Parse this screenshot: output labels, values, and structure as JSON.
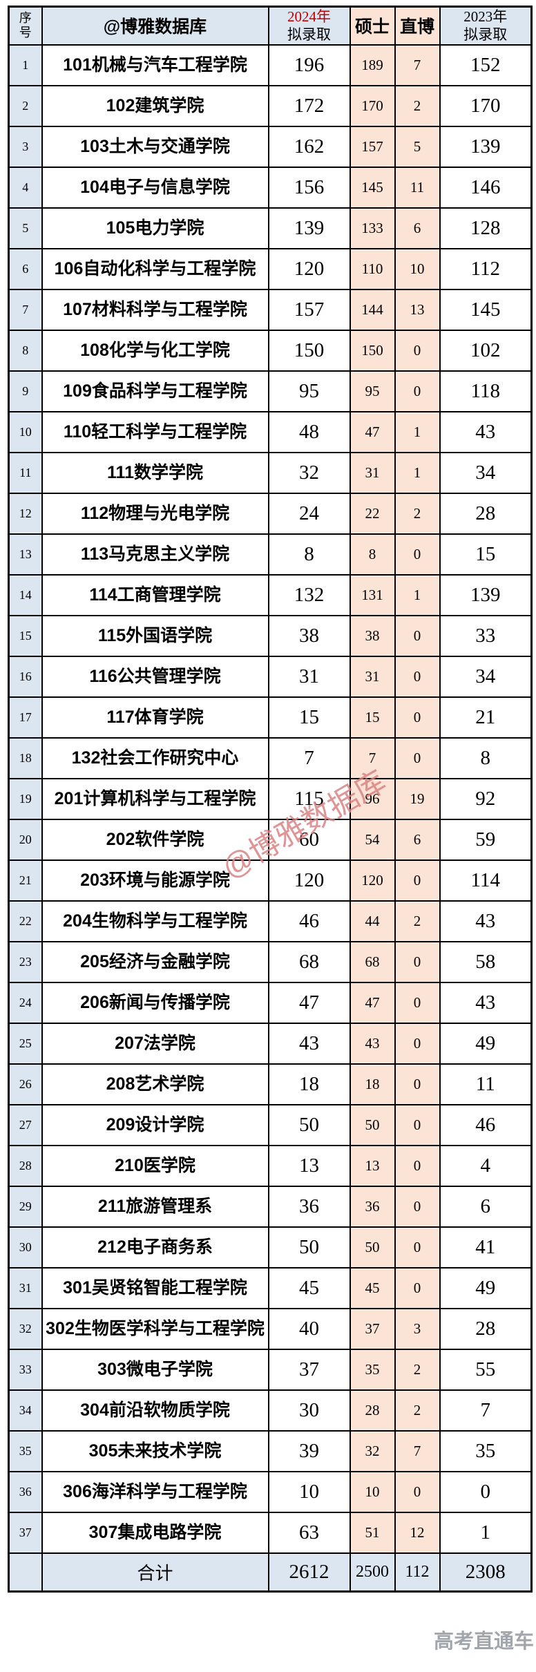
{
  "table": {
    "header": {
      "index_lines": [
        "序",
        "号"
      ],
      "name": "@博雅数据库",
      "y2024_lines": [
        "2024年",
        "拟录取"
      ],
      "masters": "硕士",
      "zhibo": "直博",
      "y2023_lines": [
        "2023年",
        "拟录取"
      ]
    },
    "rows": [
      {
        "no": 1,
        "name": "101机械与汽车工程学院",
        "y2024": 196,
        "masters": 189,
        "zhibo": 7,
        "y2023": 152
      },
      {
        "no": 2,
        "name": "102建筑学院",
        "y2024": 172,
        "masters": 170,
        "zhibo": 2,
        "y2023": 170
      },
      {
        "no": 3,
        "name": "103土木与交通学院",
        "y2024": 162,
        "masters": 157,
        "zhibo": 5,
        "y2023": 139
      },
      {
        "no": 4,
        "name": "104电子与信息学院",
        "y2024": 156,
        "masters": 145,
        "zhibo": 11,
        "y2023": 146
      },
      {
        "no": 5,
        "name": "105电力学院",
        "y2024": 139,
        "masters": 133,
        "zhibo": 6,
        "y2023": 128
      },
      {
        "no": 6,
        "name": "106自动化科学与工程学院",
        "y2024": 120,
        "masters": 110,
        "zhibo": 10,
        "y2023": 112
      },
      {
        "no": 7,
        "name": "107材料科学与工程学院",
        "y2024": 157,
        "masters": 144,
        "zhibo": 13,
        "y2023": 145
      },
      {
        "no": 8,
        "name": "108化学与化工学院",
        "y2024": 150,
        "masters": 150,
        "zhibo": 0,
        "y2023": 102
      },
      {
        "no": 9,
        "name": "109食品科学与工程学院",
        "y2024": 95,
        "masters": 95,
        "zhibo": 0,
        "y2023": 118
      },
      {
        "no": 10,
        "name": "110轻工科学与工程学院",
        "y2024": 48,
        "masters": 47,
        "zhibo": 1,
        "y2023": 43
      },
      {
        "no": 11,
        "name": "111数学学院",
        "y2024": 32,
        "masters": 31,
        "zhibo": 1,
        "y2023": 34
      },
      {
        "no": 12,
        "name": "112物理与光电学院",
        "y2024": 24,
        "masters": 22,
        "zhibo": 2,
        "y2023": 28
      },
      {
        "no": 13,
        "name": "113马克思主义学院",
        "y2024": 8,
        "masters": 8,
        "zhibo": 0,
        "y2023": 15
      },
      {
        "no": 14,
        "name": "114工商管理学院",
        "y2024": 132,
        "masters": 131,
        "zhibo": 1,
        "y2023": 139
      },
      {
        "no": 15,
        "name": "115外国语学院",
        "y2024": 38,
        "masters": 38,
        "zhibo": 0,
        "y2023": 33
      },
      {
        "no": 16,
        "name": "116公共管理学院",
        "y2024": 31,
        "masters": 31,
        "zhibo": 0,
        "y2023": 34
      },
      {
        "no": 17,
        "name": "117体育学院",
        "y2024": 15,
        "masters": 15,
        "zhibo": 0,
        "y2023": 21
      },
      {
        "no": 18,
        "name": "132社会工作研究中心",
        "y2024": 7,
        "masters": 7,
        "zhibo": 0,
        "y2023": 8
      },
      {
        "no": 19,
        "name": "201计算机科学与工程学院",
        "y2024": 115,
        "masters": 96,
        "zhibo": 19,
        "y2023": 92
      },
      {
        "no": 20,
        "name": "202软件学院",
        "y2024": 60,
        "masters": 54,
        "zhibo": 6,
        "y2023": 59
      },
      {
        "no": 21,
        "name": "203环境与能源学院",
        "y2024": 120,
        "masters": 120,
        "zhibo": 0,
        "y2023": 114
      },
      {
        "no": 22,
        "name": "204生物科学与工程学院",
        "y2024": 46,
        "masters": 44,
        "zhibo": 2,
        "y2023": 43
      },
      {
        "no": 23,
        "name": "205经济与金融学院",
        "y2024": 68,
        "masters": 68,
        "zhibo": 0,
        "y2023": 58
      },
      {
        "no": 24,
        "name": "206新闻与传播学院",
        "y2024": 47,
        "masters": 47,
        "zhibo": 0,
        "y2023": 43
      },
      {
        "no": 25,
        "name": "207法学院",
        "y2024": 43,
        "masters": 43,
        "zhibo": 0,
        "y2023": 49
      },
      {
        "no": 26,
        "name": "208艺术学院",
        "y2024": 18,
        "masters": 18,
        "zhibo": 0,
        "y2023": 11
      },
      {
        "no": 27,
        "name": "209设计学院",
        "y2024": 50,
        "masters": 50,
        "zhibo": 0,
        "y2023": 46
      },
      {
        "no": 28,
        "name": "210医学院",
        "y2024": 13,
        "masters": 13,
        "zhibo": 0,
        "y2023": 4
      },
      {
        "no": 29,
        "name": "211旅游管理系",
        "y2024": 36,
        "masters": 36,
        "zhibo": 0,
        "y2023": 6
      },
      {
        "no": 30,
        "name": "212电子商务系",
        "y2024": 50,
        "masters": 50,
        "zhibo": 0,
        "y2023": 41
      },
      {
        "no": 31,
        "name": "301吴贤铭智能工程学院",
        "y2024": 45,
        "masters": 45,
        "zhibo": 0,
        "y2023": 49
      },
      {
        "no": 32,
        "name": "302生物医学科学与工程学院",
        "y2024": 40,
        "masters": 37,
        "zhibo": 3,
        "y2023": 28
      },
      {
        "no": 33,
        "name": "303微电子学院",
        "y2024": 37,
        "masters": 35,
        "zhibo": 2,
        "y2023": 55
      },
      {
        "no": 34,
        "name": "304前沿软物质学院",
        "y2024": 30,
        "masters": 28,
        "zhibo": 2,
        "y2023": 7
      },
      {
        "no": 35,
        "name": "305未来技术学院",
        "y2024": 39,
        "masters": 32,
        "zhibo": 7,
        "y2023": 35
      },
      {
        "no": 36,
        "name": "306海洋科学与工程学院",
        "y2024": 10,
        "masters": 10,
        "zhibo": 0,
        "y2023": 0
      },
      {
        "no": 37,
        "name": "307集成电路学院",
        "y2024": 63,
        "masters": 51,
        "zhibo": 12,
        "y2023": 1
      }
    ],
    "total": {
      "label": "合计",
      "y2024": 2612,
      "masters": 2500,
      "zhibo": 112,
      "y2023": 2308
    }
  },
  "watermarks": {
    "center": "@博雅数据库",
    "corner": "高考直通车"
  },
  "colors": {
    "header_blue": "#dce6f1",
    "peach": "#fbe3d5",
    "red_2024": "#c00000",
    "watermark_pink": "#d98282",
    "watermark_gray": "#828892",
    "border": "#000000"
  }
}
